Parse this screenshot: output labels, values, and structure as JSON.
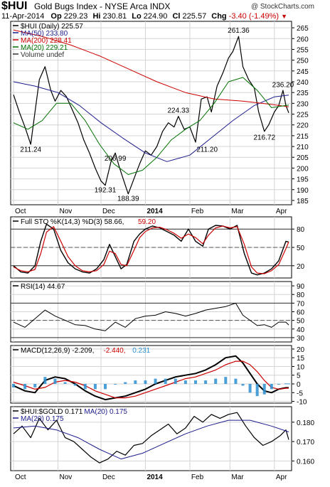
{
  "header": {
    "symbol": "$HUI",
    "title": "Gold Bugs Index - NYSE Arca INDX",
    "watermark": "@ StockCharts.com",
    "date": "11-Apr-2014",
    "op_label": "Op",
    "op": "229.23",
    "hi_label": "Hi",
    "hi": "230.81",
    "lo_label": "Lo",
    "lo": "224.90",
    "cl_label": "Cl",
    "cl": "225.57",
    "chg_label": "Chg",
    "chg": "-3.40 (-1.49%)",
    "down_arrow": "▼"
  },
  "colors": {
    "price": "#000000",
    "ma50": "#1c1c8c",
    "ma200": "#cc0000",
    "ma20": "#007000",
    "macd_hist": "#2a8fd0",
    "dashed": "#555555"
  },
  "x_axis": {
    "months": [
      {
        "label": "Oct",
        "day": 0
      },
      {
        "label": "Nov",
        "day": 31
      },
      {
        "label": "Dec",
        "day": 61
      },
      {
        "label": "2014",
        "day": 92
      },
      {
        "label": "Feb",
        "day": 123
      },
      {
        "label": "Mar",
        "day": 151
      },
      {
        "label": "Apr",
        "day": 182
      }
    ],
    "last_day": 192
  },
  "chart_data": [
    {
      "type": "line",
      "title": "$HUI (Daily) 225.57",
      "legend": [
        {
          "name": "$HUI (Daily)",
          "value": "225.57"
        },
        {
          "name": "MA(50)",
          "value": "233.80"
        },
        {
          "name": "MA(200)",
          "value": "228.41"
        },
        {
          "name": "MA(20)",
          "value": "229.21"
        },
        {
          "name": "Volume undef",
          "value": ""
        }
      ],
      "ylim": [
        183,
        268
      ],
      "yticks": [
        185,
        190,
        195,
        200,
        205,
        210,
        215,
        220,
        225,
        230,
        235,
        240,
        245,
        250,
        255,
        260,
        265
      ],
      "annotations": [
        {
          "text": "211.24",
          "day": 12,
          "value": 211.24
        },
        {
          "text": "206.99",
          "day": 71,
          "value": 206.99
        },
        {
          "text": "192.31",
          "day": 64,
          "value": 192.31
        },
        {
          "text": "188.39",
          "day": 80,
          "value": 188.39
        },
        {
          "text": "224.33",
          "day": 115,
          "value": 224.33
        },
        {
          "text": "211.20",
          "day": 135,
          "value": 211.2
        },
        {
          "text": "261.36",
          "day": 157,
          "value": 261.36
        },
        {
          "text": "236.20",
          "day": 188,
          "value": 236.2
        },
        {
          "text": "216.72",
          "day": 175,
          "value": 216.72
        }
      ],
      "series": [
        {
          "name": "$HUI (Daily)",
          "x": [
            0,
            4,
            8,
            12,
            15,
            18,
            22,
            26,
            29,
            33,
            37,
            41,
            45,
            49,
            53,
            57,
            61,
            64,
            68,
            71,
            74,
            77,
            80,
            84,
            88,
            92,
            96,
            100,
            104,
            108,
            112,
            115,
            119,
            123,
            127,
            131,
            135,
            138,
            142,
            146,
            150,
            153,
            157,
            160,
            164,
            168,
            171,
            175,
            178,
            182,
            185,
            188,
            190,
            192
          ],
          "values": [
            234,
            226,
            219,
            211,
            226,
            241,
            247,
            236,
            231,
            236,
            233,
            227,
            221,
            213,
            207,
            200,
            194,
            192,
            203,
            207,
            200,
            194,
            188,
            195,
            202,
            208,
            206,
            210,
            217,
            221,
            219,
            224,
            218,
            219,
            212,
            232,
            233,
            226,
            238,
            244,
            251,
            254,
            261,
            247,
            241,
            237,
            226,
            217,
            220,
            226,
            229,
            236,
            229,
            225.57
          ]
        },
        {
          "name": "MA(50)",
          "x": [
            0,
            15,
            31,
            46,
            61,
            76,
            92,
            107,
            123,
            138,
            153,
            168,
            182,
            192
          ],
          "values": [
            240,
            238,
            235,
            229,
            221,
            214,
            207,
            203,
            206,
            214,
            222,
            229,
            233,
            233.8
          ]
        },
        {
          "name": "MA(200)",
          "x": [
            0,
            20,
            40,
            60,
            80,
            100,
            120,
            140,
            160,
            180,
            192
          ],
          "values": [
            264,
            261,
            257,
            252,
            246,
            240,
            235,
            232,
            231,
            229.5,
            228.41
          ]
        },
        {
          "name": "MA(20)",
          "x": [
            0,
            10,
            20,
            30,
            40,
            50,
            60,
            70,
            80,
            90,
            100,
            110,
            120,
            130,
            140,
            150,
            160,
            170,
            180,
            192
          ],
          "values": [
            221,
            218,
            222,
            230,
            230,
            222,
            211,
            202,
            197,
            199,
            205,
            213,
            218,
            222,
            230,
            240,
            242,
            236,
            228,
            229.21
          ]
        }
      ]
    },
    {
      "type": "line",
      "title": "Full STO %K(14,3) %D(3) 58.66, 59.20",
      "legend": [
        {
          "name": "Full STO %K(14,3) %D(3)",
          "value": "58.66,"
        },
        {
          "name": "",
          "value": "59.20"
        }
      ],
      "ylim": [
        0,
        100
      ],
      "yticks": [
        20,
        50,
        80
      ],
      "ref_lines": [
        20,
        50,
        80
      ],
      "series": [
        {
          "name": "%K",
          "x": [
            0,
            5,
            10,
            15,
            19,
            23,
            28,
            33,
            38,
            43,
            48,
            53,
            58,
            63,
            67,
            71,
            75,
            79,
            84,
            88,
            92,
            97,
            102,
            107,
            112,
            117,
            122,
            127,
            132,
            136,
            141,
            146,
            151,
            156,
            161,
            166,
            170,
            175,
            180,
            185,
            190,
            192
          ],
          "values": [
            20,
            10,
            8,
            20,
            60,
            88,
            80,
            45,
            25,
            15,
            10,
            8,
            15,
            30,
            55,
            35,
            15,
            22,
            60,
            72,
            80,
            85,
            82,
            76,
            70,
            60,
            80,
            60,
            52,
            80,
            86,
            85,
            80,
            86,
            40,
            8,
            5,
            8,
            15,
            28,
            60,
            58.66
          ]
        },
        {
          "name": "%D",
          "x": [
            0,
            5,
            10,
            15,
            19,
            23,
            28,
            33,
            38,
            43,
            48,
            53,
            58,
            63,
            67,
            71,
            75,
            79,
            84,
            88,
            92,
            97,
            102,
            107,
            112,
            117,
            122,
            127,
            132,
            136,
            141,
            146,
            151,
            156,
            161,
            166,
            170,
            175,
            180,
            185,
            190,
            192
          ],
          "values": [
            18,
            12,
            10,
            14,
            40,
            75,
            84,
            60,
            35,
            20,
            12,
            10,
            12,
            22,
            44,
            40,
            22,
            20,
            45,
            66,
            76,
            82,
            83,
            79,
            73,
            65,
            72,
            66,
            56,
            70,
            82,
            85,
            82,
            84,
            55,
            18,
            8,
            7,
            12,
            22,
            48,
            59.2
          ]
        }
      ]
    },
    {
      "type": "line",
      "title": "RSI(14) 44.67",
      "legend": [
        {
          "name": "RSI(14)",
          "value": "44.67"
        }
      ],
      "ylim": [
        25,
        95
      ],
      "yticks": [
        30,
        40,
        50,
        60,
        70,
        80,
        90
      ],
      "ref_lines": [
        30,
        50,
        70
      ],
      "series": [
        {
          "name": "RSI(14)",
          "x": [
            0,
            8,
            15,
            22,
            29,
            36,
            43,
            50,
            57,
            64,
            71,
            78,
            85,
            92,
            99,
            106,
            113,
            120,
            127,
            134,
            141,
            148,
            155,
            160,
            165,
            170,
            175,
            180,
            185,
            190,
            192
          ],
          "values": [
            48,
            42,
            52,
            62,
            55,
            50,
            45,
            44,
            40,
            38,
            48,
            42,
            52,
            55,
            56,
            60,
            58,
            55,
            58,
            62,
            64,
            66,
            70,
            56,
            50,
            44,
            45,
            42,
            48,
            48,
            44.67
          ]
        }
      ]
    },
    {
      "type": "line",
      "title": "MACD(12,26,9) -2.209, -2.440, 0.231",
      "legend": [
        {
          "name": "MACD(12,26,9)",
          "value": "-2.209,"
        },
        {
          "name": "",
          "value": "-2.440,"
        },
        {
          "name": "",
          "value": "0.231"
        }
      ],
      "ylim": [
        -11,
        22
      ],
      "yticks": [
        -10,
        -5,
        0,
        5,
        10,
        15,
        20
      ],
      "series": [
        {
          "name": "MACD",
          "x": [
            0,
            8,
            15,
            22,
            29,
            36,
            43,
            50,
            57,
            64,
            71,
            78,
            85,
            92,
            99,
            106,
            113,
            120,
            127,
            134,
            141,
            148,
            155,
            160,
            165,
            170,
            175,
            180,
            185,
            190,
            192
          ],
          "values": [
            -1,
            -4,
            -5,
            2,
            4,
            3,
            0,
            -4,
            -7,
            -9,
            -8,
            -7,
            -5,
            -3,
            0,
            2,
            4,
            5,
            6,
            8,
            11,
            15,
            16,
            12,
            6,
            0,
            -4,
            -5,
            -3,
            -2.2,
            -2.209
          ]
        },
        {
          "name": "Signal",
          "x": [
            0,
            8,
            15,
            22,
            29,
            36,
            43,
            50,
            57,
            64,
            71,
            78,
            85,
            92,
            99,
            106,
            113,
            120,
            127,
            134,
            141,
            148,
            155,
            160,
            165,
            170,
            175,
            180,
            185,
            190,
            192
          ],
          "values": [
            1,
            -1,
            -3,
            -2,
            1,
            2,
            1,
            -1,
            -4,
            -6,
            -8,
            -8,
            -7,
            -5,
            -3,
            -1,
            1,
            3,
            4,
            6,
            8,
            11,
            13,
            13,
            11,
            7,
            2,
            -2,
            -3,
            -2.5,
            -2.44
          ]
        },
        {
          "name": "Histogram",
          "x": [
            0,
            8,
            15,
            22,
            29,
            36,
            43,
            50,
            57,
            64,
            71,
            78,
            85,
            92,
            99,
            106,
            113,
            120,
            127,
            134,
            141,
            148,
            155,
            160,
            165,
            170,
            175,
            180,
            185,
            190,
            192
          ],
          "values": [
            -2,
            -3,
            -2,
            4,
            3,
            1,
            -1,
            -3,
            -3,
            -3,
            0,
            1,
            2,
            2,
            3,
            3,
            3,
            2,
            2,
            2,
            3,
            4,
            3,
            -1,
            -5,
            -7,
            -6,
            -3,
            0,
            0.3,
            0.231
          ]
        }
      ]
    },
    {
      "type": "line",
      "title": "$HUI:$GOLD 0.171",
      "legend": [
        {
          "name": "$HUI:$GOLD",
          "value": "0.171"
        },
        {
          "name": "MA(20)",
          "value": "0.175"
        }
      ],
      "ylim": [
        0.155,
        0.188
      ],
      "yticks": [
        0.16,
        0.17,
        0.18
      ],
      "series": [
        {
          "name": "$HUI:$GOLD",
          "x": [
            0,
            6,
            12,
            18,
            24,
            30,
            36,
            42,
            48,
            54,
            60,
            66,
            72,
            78,
            84,
            90,
            96,
            102,
            108,
            114,
            120,
            126,
            132,
            138,
            144,
            150,
            156,
            162,
            168,
            174,
            180,
            186,
            190,
            192
          ],
          "values": [
            0.174,
            0.178,
            0.172,
            0.182,
            0.176,
            0.181,
            0.172,
            0.17,
            0.166,
            0.162,
            0.159,
            0.161,
            0.165,
            0.163,
            0.168,
            0.169,
            0.173,
            0.176,
            0.179,
            0.174,
            0.177,
            0.183,
            0.18,
            0.184,
            0.182,
            0.184,
            0.185,
            0.178,
            0.172,
            0.168,
            0.17,
            0.173,
            0.176,
            0.171
          ]
        },
        {
          "name": "MA(20)",
          "x": [
            0,
            15,
            30,
            45,
            60,
            75,
            90,
            105,
            120,
            135,
            150,
            165,
            180,
            192
          ],
          "values": [
            0.177,
            0.178,
            0.176,
            0.172,
            0.166,
            0.161,
            0.164,
            0.169,
            0.174,
            0.178,
            0.181,
            0.181,
            0.178,
            0.175
          ]
        }
      ]
    }
  ]
}
